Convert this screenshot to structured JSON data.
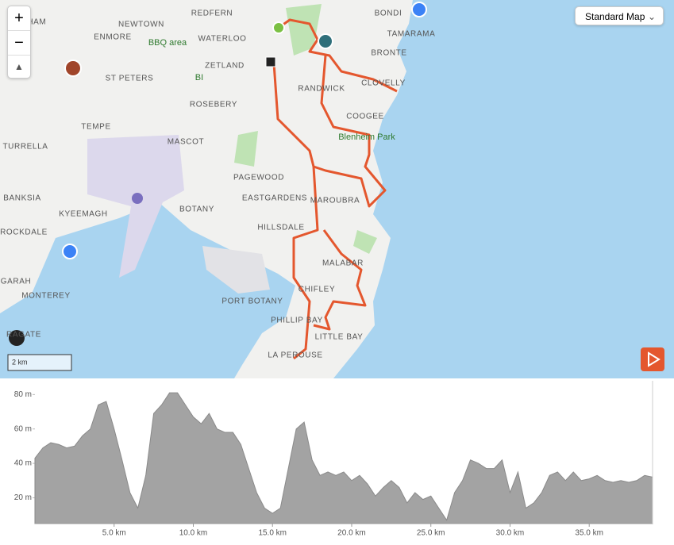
{
  "map": {
    "labels": [
      "REDFERN",
      "NEWTOWN",
      "WISHAM",
      "ENMORE",
      "WATERLOO",
      "ZETLAND",
      "ST PETERS",
      "ROSEBERY",
      "TEMPE",
      "MASCOT",
      "TURRELLA",
      "PAGEWOOD",
      "EASTGARDENS",
      "BANKSIA",
      "KYEEMAGH",
      "BOTANY",
      "ROCKDALE",
      "HILLSDALE",
      "GARAH",
      "MONTEREY",
      "PORT BOTANY",
      "PHILLIP BAY",
      "LA PEROUSE",
      "BONDI",
      "TAMARAMA",
      "BRONTE",
      "RANDWICK",
      "CLOVELLY",
      "COOGEE",
      "MAROUBRA",
      "MALABAR",
      "CHIFLEY",
      "LITTLE BAY",
      "RAGATE"
    ],
    "parks": [
      "BBQ area",
      "BI",
      "Blenheim Park"
    ],
    "map_style": "Standard Map",
    "scale": "2 km"
  },
  "chart_data": {
    "type": "area",
    "x": [
      0,
      0.5,
      1,
      1.5,
      2,
      2.5,
      3,
      3.5,
      4,
      4.5,
      5,
      5.5,
      6,
      6.5,
      7,
      7.5,
      8,
      8.5,
      9,
      9.5,
      10,
      10.5,
      11,
      11.5,
      12,
      12.5,
      13,
      13.5,
      14,
      14.5,
      15,
      15.5,
      16,
      16.5,
      17,
      17.5,
      18,
      18.5,
      19,
      19.5,
      20,
      20.5,
      21,
      21.5,
      22,
      22.5,
      23,
      23.5,
      24,
      24.5,
      25,
      25.5,
      26,
      26.5,
      27,
      27.5,
      28,
      28.5,
      29,
      29.5,
      30,
      30.5,
      31,
      31.5,
      32,
      32.5,
      33,
      33.5,
      34,
      34.5,
      35,
      35.5,
      36,
      36.5,
      37,
      37.5,
      38,
      38.5,
      39
    ],
    "values": [
      43,
      49,
      52,
      51,
      49,
      50,
      56,
      60,
      74,
      76,
      60,
      42,
      23,
      14,
      33,
      69,
      74,
      81,
      81,
      74,
      67,
      63,
      69,
      60,
      58,
      58,
      51,
      37,
      23,
      14,
      11,
      14,
      37,
      60,
      64,
      42,
      33,
      35,
      33,
      35,
      30,
      33,
      28,
      21,
      26,
      30,
      26,
      17,
      23,
      19,
      21,
      14,
      7,
      23,
      30,
      42,
      40,
      37,
      37,
      42,
      23,
      35,
      14,
      17,
      23,
      33,
      35,
      30,
      35,
      30,
      31,
      33,
      30,
      29,
      30,
      29,
      30,
      33,
      32
    ],
    "color": "#a3a3a3",
    "xlim": [
      0,
      39
    ],
    "ylim": [
      5,
      88
    ],
    "xticks": [
      {
        "value": 5,
        "label": "5.0 km"
      },
      {
        "value": 10,
        "label": "10.0 km"
      },
      {
        "value": 15,
        "label": "15.0 km"
      },
      {
        "value": 20,
        "label": "20.0 km"
      },
      {
        "value": 25,
        "label": "25.0 km"
      },
      {
        "value": 30,
        "label": "30.0 km"
      },
      {
        "value": 35,
        "label": "35.0 km"
      }
    ],
    "yticks": [
      {
        "value": 20,
        "label": "20 m"
      },
      {
        "value": 40,
        "label": "40 m"
      },
      {
        "value": 60,
        "label": "60 m"
      },
      {
        "value": 80,
        "label": "80 m"
      }
    ]
  }
}
